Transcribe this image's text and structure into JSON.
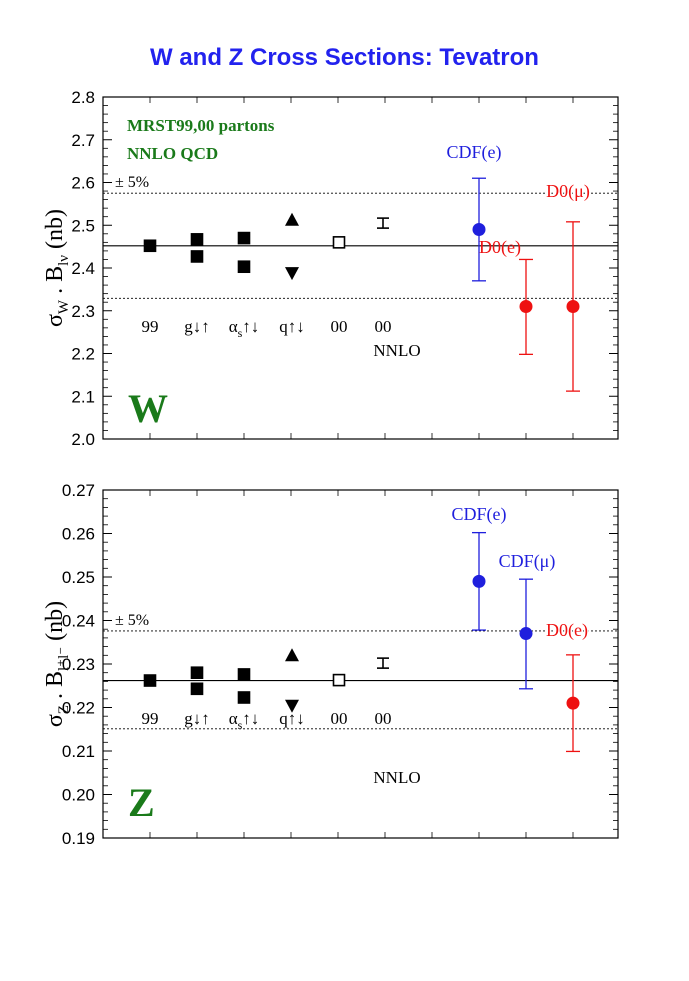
{
  "page_title": "W and Z Cross Sections: Tevatron",
  "colors": {
    "title": "#2222ee",
    "green": "#1a7a1a",
    "blue": "#1f1fdd",
    "red": "#ee1111",
    "black": "#000000"
  },
  "chart_data": [
    {
      "type": "scatter",
      "panel_label": "W",
      "ylabel_prefix": "σ",
      "ylabel_sub1": "W",
      "ylabel_mid": " . B",
      "ylabel_sub2": "lν",
      "ylabel_suffix": "   (nb)",
      "ylim": [
        2.0,
        2.8
      ],
      "yticks": [
        "2.0",
        "2.1",
        "2.2",
        "2.3",
        "2.4",
        "2.5",
        "2.6",
        "2.7",
        "2.8"
      ],
      "central": 2.452,
      "band_upper": 2.575,
      "band_lower": 2.329,
      "band_label": "± 5%",
      "legend": [
        "MRST99,00 partons",
        "NNLO QCD"
      ],
      "theory_labels": [
        "99",
        "g↓↑",
        "α",
        "s",
        "↑↓",
        "q↑↓",
        "00",
        "00",
        "NNLO"
      ],
      "theory": {
        "p99": 2.452,
        "g": [
          2.467,
          2.427
        ],
        "as": [
          2.47,
          2.403
        ],
        "q_up": 2.513,
        "q_down": 2.388,
        "p00": 2.46,
        "nnlo": 2.505
      },
      "experiments": [
        {
          "label": "CDF(e)",
          "value": 2.49,
          "err_up": 2.61,
          "err_down": 2.37,
          "color": "blue"
        },
        {
          "label": "D0(e)",
          "value": 2.31,
          "err_up": 2.42,
          "err_down": 2.198,
          "color": "red"
        },
        {
          "label": "D0(μ)",
          "value": 2.31,
          "err_up": 2.508,
          "err_down": 2.112,
          "color": "red"
        }
      ]
    },
    {
      "type": "scatter",
      "panel_label": "Z",
      "ylabel_prefix": "σ",
      "ylabel_sub1": "Z",
      "ylabel_mid": " . B",
      "ylabel_sub2": "l⁺l⁻",
      "ylabel_suffix": "   (nb)",
      "ylim": [
        0.19,
        0.27
      ],
      "yticks": [
        "0.19",
        "0.20",
        "0.21",
        "0.22",
        "0.23",
        "0.24",
        "0.25",
        "0.26",
        "0.27"
      ],
      "central": 0.2262,
      "band_upper": 0.2376,
      "band_lower": 0.2151,
      "band_label": "± 5%",
      "theory_labels": [
        "99",
        "g↓↑",
        "α",
        "s",
        "↑↓",
        "q↑↓",
        "00",
        "00",
        "NNLO"
      ],
      "theory": {
        "p99": 0.2262,
        "g": [
          0.228,
          0.2243
        ],
        "as": [
          0.2276,
          0.2223
        ],
        "q_up": 0.232,
        "q_down": 0.2204,
        "p00": 0.2263,
        "nnlo": 0.2302
      },
      "experiments": [
        {
          "label": "CDF(e)",
          "value": 0.249,
          "err_up": 0.2602,
          "err_down": 0.2378,
          "color": "blue"
        },
        {
          "label": "CDF(μ)",
          "value": 0.237,
          "err_up": 0.2495,
          "err_down": 0.2243,
          "color": "blue"
        },
        {
          "label": "D0(e)",
          "value": 0.221,
          "err_up": 0.2321,
          "err_down": 0.2099,
          "color": "red"
        }
      ]
    }
  ]
}
